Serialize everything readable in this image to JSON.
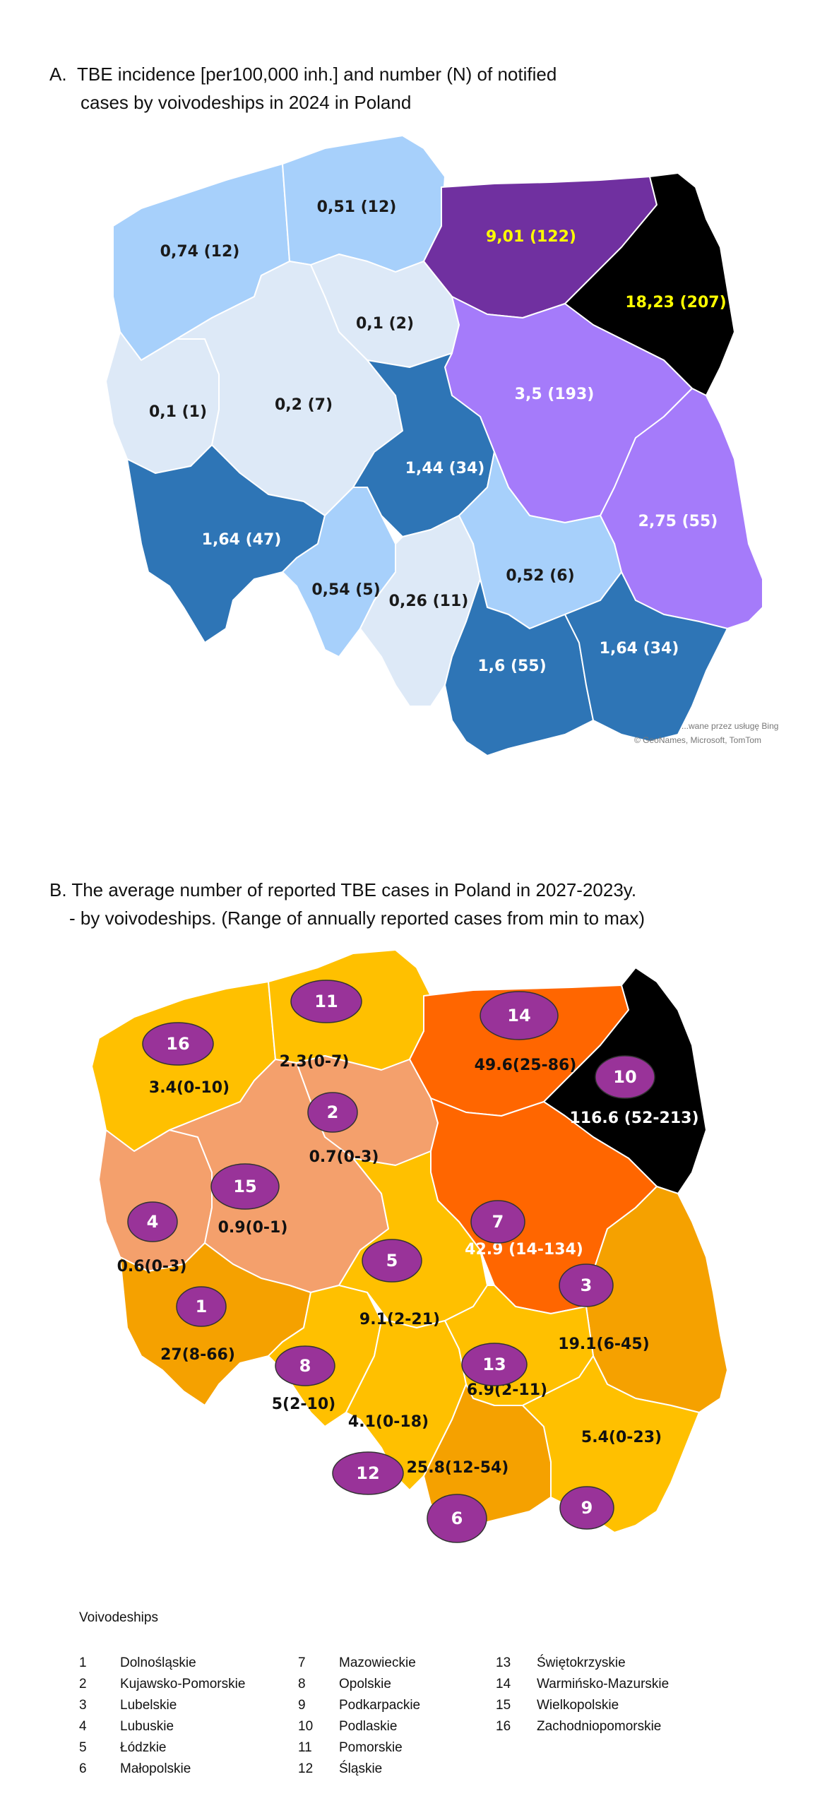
{
  "panel_a": {
    "title_line1": "A.  TBE incidence [per100,000 inh.] and number (N) of notified",
    "title_line2": "cases by voivodeships in 2024 in Poland",
    "credit_line1": "...wane przez usługę Bing",
    "credit_line2": "© GeoNames, Microsoft, TomTom",
    "regions": [
      {
        "name": "Zachodniopomorskie",
        "label": "0,74 (12)",
        "color": "#a7d0fb"
      },
      {
        "name": "Pomorskie",
        "label": "0,51 (12)",
        "color": "#a7d0fb"
      },
      {
        "name": "Warmińsko-Mazurskie",
        "label": "9,01 (122)",
        "color": "#7030a0"
      },
      {
        "name": "Podlaskie",
        "label": "18,23 (207)",
        "color": "#000000"
      },
      {
        "name": "Kujawsko-Pomorskie",
        "label": "0,1 (2)",
        "color": "#dde9f7"
      },
      {
        "name": "Lubuskie",
        "label": "0,1 (1)",
        "color": "#dde9f7"
      },
      {
        "name": "Wielkopolskie",
        "label": "0,2 (7)",
        "color": "#dde9f7"
      },
      {
        "name": "Mazowieckie",
        "label": "3,5 (193)",
        "color": "#a57bfa"
      },
      {
        "name": "Łódzkie",
        "label": "1,44 (34)",
        "color": "#2e75b6"
      },
      {
        "name": "Dolnośląskie",
        "label": "1,64 (47)",
        "color": "#2e75b6"
      },
      {
        "name": "Lubelskie",
        "label": "2,75 (55)",
        "color": "#a57bfa"
      },
      {
        "name": "Opolskie",
        "label": "0,54 (5)",
        "color": "#a7d0fb"
      },
      {
        "name": "Śląskie",
        "label": "0,26 (11)",
        "color": "#dde9f7"
      },
      {
        "name": "Świętokrzyskie",
        "label": "0,52 (6)",
        "color": "#a7d0fb"
      },
      {
        "name": "Małopolskie",
        "label": "1,6 (55)",
        "color": "#2e75b6"
      },
      {
        "name": "Podkarpackie",
        "label": "1,64 (34)",
        "color": "#2e75b6"
      }
    ]
  },
  "panel_b": {
    "title_line1": "B. The average number of reported TBE cases in Poland in 2027-2023y.",
    "title_line2": "- by voivodeships. (Range of annually reported cases from min to max)",
    "marker_color": "#993399",
    "regions": [
      {
        "num": "1",
        "name": "Dolnośląskie",
        "label": "27(8-66)",
        "color": "#f5a100"
      },
      {
        "num": "2",
        "name": "Kujawsko-Pomorskie",
        "label": "0.7(0-3)",
        "color": "#f4a06c"
      },
      {
        "num": "3",
        "name": "Lubelskie",
        "label": "19.1(6-45)",
        "color": "#f5a100"
      },
      {
        "num": "4",
        "name": "Lubuskie",
        "label": "0.6(0-3)",
        "color": "#f4a06c"
      },
      {
        "num": "5",
        "name": "Łódzkie",
        "label": "9.1(2-21)",
        "color": "#ffc000"
      },
      {
        "num": "6",
        "name": "Małopolskie",
        "label": "25.8(12-54)",
        "color": "#f5a100"
      },
      {
        "num": "7",
        "name": "Mazowieckie",
        "label": "42.9 (14-134)",
        "color": "#ff6600"
      },
      {
        "num": "8",
        "name": "Opolskie",
        "label": "5(2-10)",
        "color": "#ffc000"
      },
      {
        "num": "9",
        "name": "Podkarpackie",
        "label": "5.4(0-23)",
        "color": "#ffc000"
      },
      {
        "num": "10",
        "name": "Podlaskie",
        "label": "116.6 (52-213)",
        "color": "#000000"
      },
      {
        "num": "11",
        "name": "Pomorskie",
        "label": "2.3(0-7)",
        "color": "#ffc000"
      },
      {
        "num": "12",
        "name": "Śląskie",
        "label": "4.1(0-18)",
        "color": "#ffc000"
      },
      {
        "num": "13",
        "name": "Świętokrzyskie",
        "label": "6.9(2-11)",
        "color": "#ffc000"
      },
      {
        "num": "14",
        "name": "Warmińsko-Mazurskie",
        "label": "49.6(25-86)",
        "color": "#ff6600"
      },
      {
        "num": "15",
        "name": "Wielkopolskie",
        "label": "0.9(0-1)",
        "color": "#f4a06c"
      },
      {
        "num": "16",
        "name": "Zachodniopomorskie",
        "label": "3.4(0-10)",
        "color": "#ffc000"
      }
    ]
  },
  "legend": {
    "title": "Voivodeships",
    "columns": [
      [
        {
          "num": "1",
          "name": "Dolnośląskie"
        },
        {
          "num": "2",
          "name": "Kujawsko-Pomorskie"
        },
        {
          "num": "3",
          "name": "Lubelskie"
        },
        {
          "num": "4",
          "name": "Lubuskie"
        },
        {
          "num": "5",
          "name": "Łódzkie"
        },
        {
          "num": "6",
          "name": "Małopolskie"
        }
      ],
      [
        {
          "num": "7",
          "name": "Mazowieckie"
        },
        {
          "num": "8",
          "name": "Opolskie"
        },
        {
          "num": "9",
          "name": "Podkarpackie"
        },
        {
          "num": "10",
          "name": "Podlaskie"
        },
        {
          "num": "11",
          "name": "Pomorskie"
        },
        {
          "num": "12",
          "name": "Śląskie"
        }
      ],
      [
        {
          "num": "13",
          "name": "Świętokrzyskie"
        },
        {
          "num": "14",
          "name": "Warmińsko-Mazurskie"
        },
        {
          "num": "15",
          "name": "Wielkopolskie"
        },
        {
          "num": "16",
          "name": "Zachodniopomorskie"
        }
      ]
    ]
  }
}
